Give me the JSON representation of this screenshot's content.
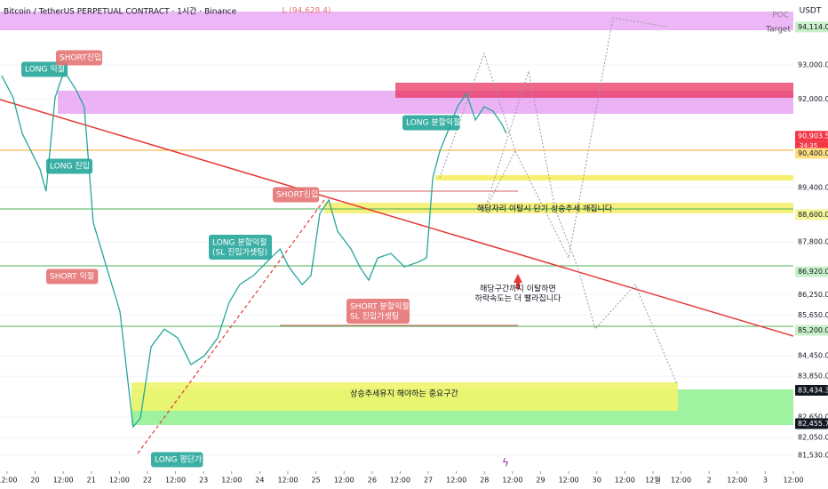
{
  "header": {
    "title": "Bitcoin / TetherUS PERPETUAL CONTRACT · 1시간 · Binance",
    "currency": "USDT",
    "high_marker": "L (94,628.4)",
    "poc": "POC",
    "target": "Target"
  },
  "chart_data": {
    "type": "line",
    "color": "#26a69a",
    "x": [
      -0.19,
      0.22,
      0.54,
      1.17,
      1.39,
      1.71,
      2.03,
      2.44,
      2.75,
      3.07,
      3.54,
      4.02,
      4.49,
      4.75,
      5.13,
      5.6,
      6.08,
      6.55,
      7.03,
      7.5,
      7.91,
      8.29,
      8.77,
      9.24,
      9.72,
      10.03,
      10.51,
      10.82,
      11.14,
      11.46,
      11.77,
      12.25,
      12.56,
      12.88,
      13.2,
      13.67,
      14.15,
      14.62,
      14.94,
      15.16,
      15.41,
      15.73,
      16.04,
      16.36,
      16.68,
      16.99,
      17.31,
      17.63,
      17.78
    ],
    "values": [
      92686,
      92033,
      90987,
      89942,
      89288,
      92033,
      92817,
      92294,
      91771,
      88373,
      87066,
      85759,
      82361,
      82622,
      84713,
      85236,
      84975,
      84191,
      84452,
      84975,
      86020,
      86543,
      86805,
      87197,
      87589,
      87066,
      86543,
      86805,
      88634,
      89027,
      88112,
      87589,
      87066,
      86674,
      87327,
      87458,
      87066,
      87197,
      87327,
      89680,
      90464,
      91118,
      91771,
      92163,
      91379,
      91771,
      91640,
      91248,
      90987
    ],
    "xlim": [
      -0.25,
      28.0
    ],
    "xticks": [
      {
        "value": 0,
        "label": "12:00"
      },
      {
        "value": 1,
        "label": "20"
      },
      {
        "value": 2,
        "label": "12:00"
      },
      {
        "value": 3,
        "label": "21"
      },
      {
        "value": 4,
        "label": "12:00"
      },
      {
        "value": 5,
        "label": "22"
      },
      {
        "value": 6,
        "label": "12:00"
      },
      {
        "value": 7,
        "label": "23"
      },
      {
        "value": 8,
        "label": "12:00"
      },
      {
        "value": 9,
        "label": "24"
      },
      {
        "value": 10,
        "label": "12:00"
      },
      {
        "value": 11,
        "label": "25"
      },
      {
        "value": 12,
        "label": "12:00"
      },
      {
        "value": 13,
        "label": "26"
      },
      {
        "value": 14,
        "label": "12:00"
      },
      {
        "value": 15,
        "label": "27"
      },
      {
        "value": 16,
        "label": "12:00"
      },
      {
        "value": 17,
        "label": "28"
      },
      {
        "value": 18,
        "label": "12:00"
      },
      {
        "value": 19,
        "label": "29"
      },
      {
        "value": 20,
        "label": "12:00"
      },
      {
        "value": 21,
        "label": "30"
      },
      {
        "value": 22,
        "label": "12:00"
      },
      {
        "value": 23,
        "label": "12월"
      },
      {
        "value": 24,
        "label": "12:00"
      },
      {
        "value": 25,
        "label": "2"
      },
      {
        "value": 26,
        "label": "12:00"
      },
      {
        "value": 27,
        "label": "3"
      },
      {
        "value": 28,
        "label": "12:00"
      }
    ],
    "ylim": [
      81057,
      94908
    ],
    "yticks": [
      {
        "value": 93000,
        "label": "93,000.0"
      },
      {
        "value": 92000,
        "label": "92,000.0"
      },
      {
        "value": 89400,
        "label": "89,400.0"
      },
      {
        "value": 87800,
        "label": "87,800.0"
      },
      {
        "value": 86250,
        "label": "86,250.0"
      },
      {
        "value": 85650,
        "label": "85,650.0"
      },
      {
        "value": 84450,
        "label": "84,450.0"
      },
      {
        "value": 83850,
        "label": "83,850.0"
      },
      {
        "value": 82650,
        "label": "82,650.0"
      },
      {
        "value": 82050,
        "label": "82,050.0"
      },
      {
        "value": 81530,
        "label": "81,530.0"
      }
    ],
    "price_badges": [
      {
        "value": 94114,
        "label": "94,114.0",
        "color": "#c8f0c8"
      },
      {
        "value": 90903.5,
        "label": "90,903.5",
        "color": "#f23645"
      },
      {
        "value": 90400,
        "label": "90,400.0",
        "color": "#ffe082"
      },
      {
        "value": 88600,
        "label": "88,600.0",
        "color": "#f5f59a"
      },
      {
        "value": 86920,
        "label": "86,920.0",
        "color": "#c8f0c8"
      },
      {
        "value": 85200,
        "label": "85,200.0",
        "color": "#c8f0c8"
      },
      {
        "value": 83434.3,
        "label": "83,434.3",
        "color": "#131722"
      },
      {
        "value": 82455.7,
        "label": "82,455.7",
        "color": "#131722"
      }
    ],
    "countdown": "34:35"
  },
  "annotations": [
    {
      "text": "LONG 익절",
      "kind": "long"
    },
    {
      "text": "SHORT진입",
      "kind": "short"
    },
    {
      "text": "LONG 진입",
      "kind": "long"
    },
    {
      "text": "SHORT 익절",
      "kind": "short"
    },
    {
      "text": "LONG 분할익절\n(SL 진입가셋팅)",
      "kind": "long"
    },
    {
      "text": "SHORT진입",
      "kind": "short"
    },
    {
      "text": "SHORT 분할익절\nSL 진입가셋팅",
      "kind": "short"
    },
    {
      "text": "LONG 분할익절",
      "kind": "long"
    },
    {
      "text": "LONG 평단가",
      "kind": "long"
    }
  ],
  "notes": [
    "해당자리 이탈시 단기 상승추세 깨집니다",
    "해당구간까지 이탈하면\n하락속도는 더 빨라집니다",
    "상승추세유지 해야하는 중요구간"
  ]
}
